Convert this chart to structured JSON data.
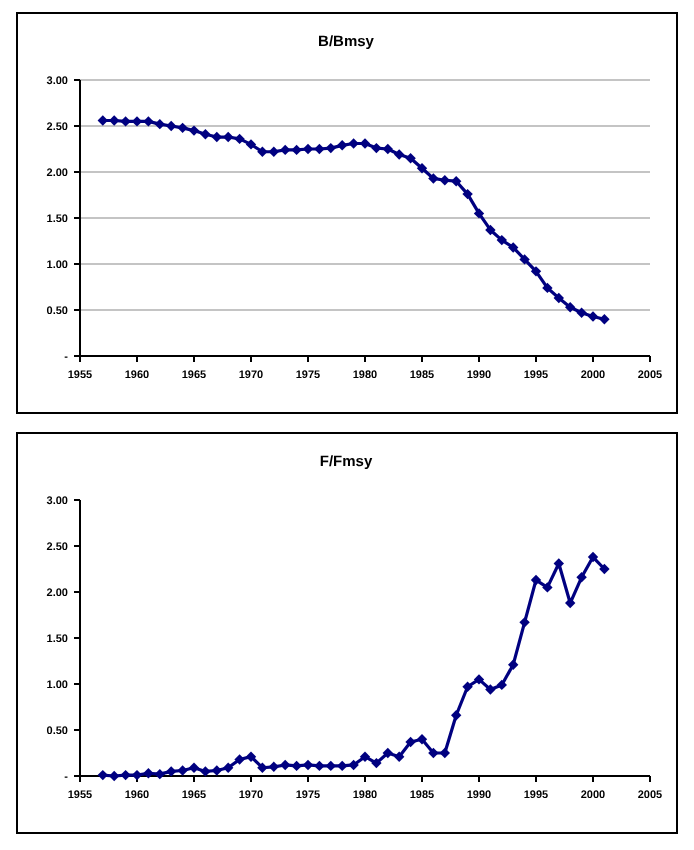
{
  "chart_data": [
    {
      "type": "line",
      "title": "B/Bmsy",
      "x": [
        1957,
        1958,
        1959,
        1960,
        1961,
        1962,
        1963,
        1964,
        1965,
        1966,
        1967,
        1968,
        1969,
        1970,
        1971,
        1972,
        1973,
        1974,
        1975,
        1976,
        1977,
        1978,
        1979,
        1980,
        1981,
        1982,
        1983,
        1984,
        1985,
        1986,
        1987,
        1988,
        1989,
        1990,
        1991,
        1992,
        1993,
        1994,
        1995,
        1996,
        1997,
        1998,
        1999,
        2000,
        2001
      ],
      "series": [
        {
          "color": "#000080",
          "values": [
            2.56,
            2.56,
            2.55,
            2.55,
            2.55,
            2.52,
            2.5,
            2.48,
            2.45,
            2.41,
            2.38,
            2.38,
            2.36,
            2.3,
            2.22,
            2.22,
            2.24,
            2.24,
            2.25,
            2.25,
            2.26,
            2.29,
            2.31,
            2.31,
            2.26,
            2.25,
            2.19,
            2.15,
            2.04,
            1.93,
            1.91,
            1.9,
            1.76,
            1.55,
            1.37,
            1.26,
            1.18,
            1.05,
            0.92,
            0.74,
            0.63,
            0.53,
            0.47,
            0.43,
            0.4
          ]
        }
      ],
      "xlim": [
        1955,
        2005
      ],
      "xticks": [
        1955,
        1960,
        1965,
        1970,
        1975,
        1980,
        1985,
        1990,
        1995,
        2000,
        2005
      ],
      "ylim": [
        0,
        3
      ],
      "yticks": [
        {
          "value": 0,
          "label": "-"
        },
        {
          "value": 0.5,
          "label": "0.50"
        },
        {
          "value": 1,
          "label": "1.00"
        },
        {
          "value": 1.5,
          "label": "1.50"
        },
        {
          "value": 2,
          "label": "2.00"
        },
        {
          "value": 2.5,
          "label": "2.50"
        },
        {
          "value": 3,
          "label": "3.00"
        }
      ],
      "grid": "y",
      "marker": "diamond",
      "line_style": "solid"
    },
    {
      "type": "line",
      "title": "F/Fmsy",
      "x": [
        1957,
        1958,
        1959,
        1960,
        1961,
        1962,
        1963,
        1964,
        1965,
        1966,
        1967,
        1968,
        1969,
        1970,
        1971,
        1972,
        1973,
        1974,
        1975,
        1976,
        1977,
        1978,
        1979,
        1980,
        1981,
        1982,
        1983,
        1984,
        1985,
        1986,
        1987,
        1988,
        1989,
        1990,
        1991,
        1992,
        1993,
        1994,
        1995,
        1996,
        1997,
        1998,
        1999,
        2000,
        2001
      ],
      "series": [
        {
          "color": "#000080",
          "values": [
            0.01,
            0,
            0.01,
            0.01,
            0.03,
            0.02,
            0.05,
            0.06,
            0.09,
            0.05,
            0.06,
            0.09,
            0.18,
            0.21,
            0.09,
            0.1,
            0.12,
            0.11,
            0.12,
            0.11,
            0.11,
            0.11,
            0.12,
            0.21,
            0.14,
            0.25,
            0.21,
            0.37,
            0.4,
            0.25,
            0.25,
            0.66,
            0.97,
            1.05,
            0.94,
            0.99,
            1.21,
            1.67,
            2.13,
            2.05,
            2.31,
            1.88,
            2.16,
            2.38,
            2.25
          ]
        }
      ],
      "xlim": [
        1955,
        2005
      ],
      "xticks": [
        1955,
        1960,
        1965,
        1970,
        1975,
        1980,
        1985,
        1990,
        1995,
        2000,
        2005
      ],
      "ylim": [
        0,
        3
      ],
      "yticks": [
        {
          "value": 0,
          "label": "-"
        },
        {
          "value": 0.5,
          "label": "0.50"
        },
        {
          "value": 1,
          "label": "1.00"
        },
        {
          "value": 1.5,
          "label": "1.50"
        },
        {
          "value": 2,
          "label": "2.00"
        },
        {
          "value": 2.5,
          "label": "2.50"
        },
        {
          "value": 3,
          "label": "3.00"
        }
      ],
      "grid": false,
      "marker": "diamond",
      "line_style": "solid"
    }
  ]
}
